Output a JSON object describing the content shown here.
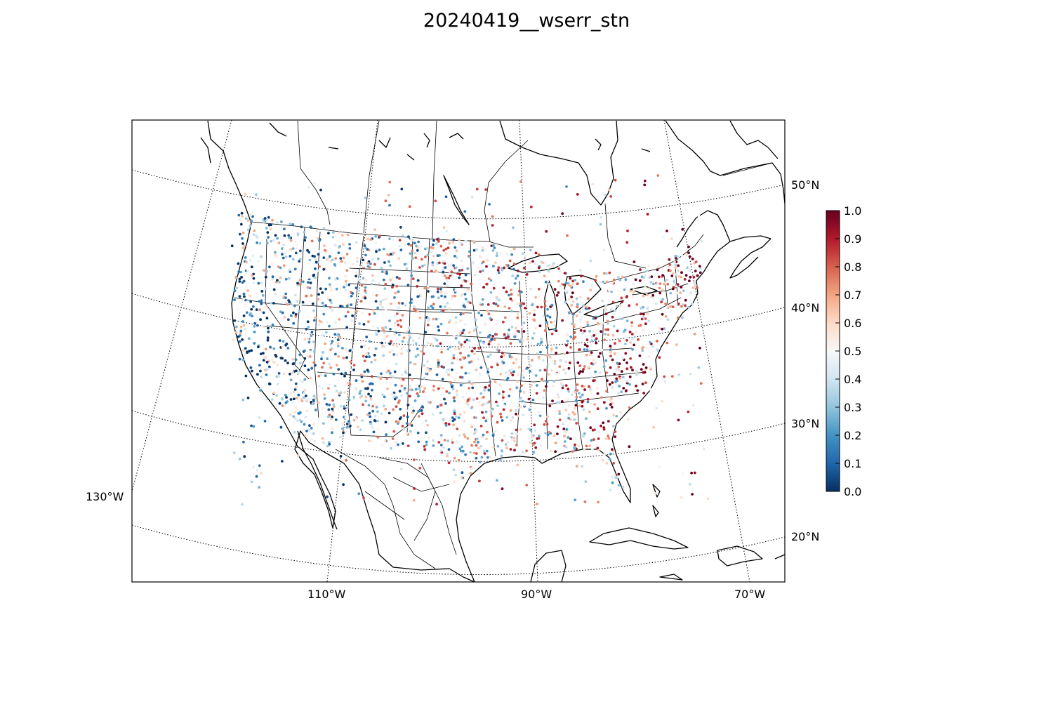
{
  "title": "20240419__wserr_stn",
  "map": {
    "projection": "lambert-conformal",
    "region": "North America / CONUS",
    "coastline_color": "#000000",
    "graticule_style": "dotted",
    "lat_labels": [
      "50°N",
      "40°N",
      "30°N",
      "20°N"
    ],
    "lon_labels": [
      "130°W",
      "110°W",
      "90°W",
      "70°W"
    ],
    "marker": "small filled circles (station values)"
  },
  "colorbar": {
    "colormap": "RdBu_r",
    "ticks": [
      "1.0",
      "0.9",
      "0.8",
      "0.7",
      "0.6",
      "0.5",
      "0.4",
      "0.3",
      "0.2",
      "0.1",
      "0.0"
    ],
    "min": 0.0,
    "max": 1.0,
    "stops": [
      "#053061",
      "#2166ac",
      "#4393c3",
      "#92c5de",
      "#d1e5f0",
      "#f7f7f7",
      "#fddbc7",
      "#f4a582",
      "#d6604d",
      "#b2182b",
      "#67001f"
    ]
  }
}
